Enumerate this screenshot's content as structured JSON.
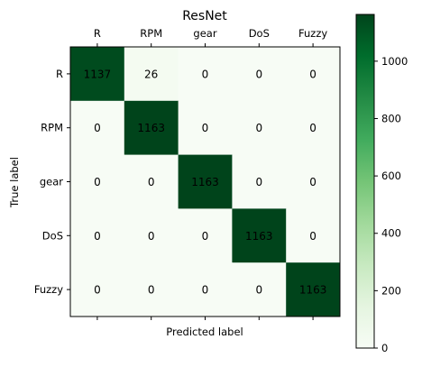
{
  "chart_data": {
    "type": "heatmap",
    "title": "ResNet",
    "xlabel": "Predicted label",
    "ylabel": "True label",
    "x_categories": [
      "R",
      "RPM",
      "gear",
      "DoS",
      "Fuzzy"
    ],
    "y_categories": [
      "R",
      "RPM",
      "gear",
      "DoS",
      "Fuzzy"
    ],
    "values": [
      [
        1137,
        26,
        0,
        0,
        0
      ],
      [
        0,
        1163,
        0,
        0,
        0
      ],
      [
        0,
        0,
        1163,
        0,
        0
      ],
      [
        0,
        0,
        0,
        1163,
        0
      ],
      [
        0,
        0,
        0,
        0,
        1163
      ]
    ],
    "colormap": "Greens",
    "colorbar": {
      "min": 0,
      "max": 1163,
      "ticks": [
        0,
        200,
        400,
        600,
        800,
        1000
      ]
    },
    "x_tick_position": "top",
    "grid": false
  }
}
